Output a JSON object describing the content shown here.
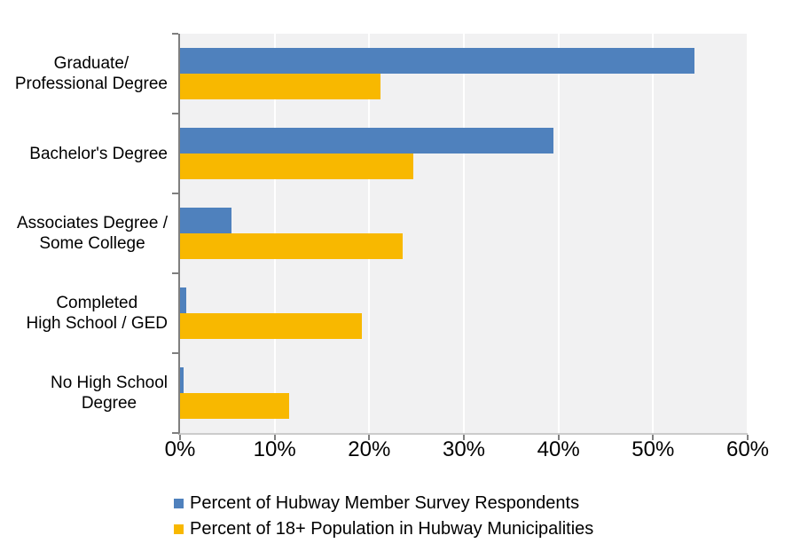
{
  "chart_data": {
    "type": "bar",
    "orientation": "horizontal",
    "title": "",
    "xlabel": "",
    "ylabel": "",
    "grid": true,
    "legend_position": "bottom",
    "categories": [
      [
        "Graduate/",
        "Professional Degree"
      ],
      [
        "Bachelor's Degree"
      ],
      [
        "Associates Degree /",
        "Some College"
      ],
      [
        "Completed",
        "High School / GED"
      ],
      [
        "No High School",
        "Degree"
      ]
    ],
    "series": [
      {
        "name": "Percent of Hubway Member Survey Respondents",
        "color": "#4f81bd",
        "values": [
          54.4,
          39.5,
          5.4,
          0.7,
          0.4
        ]
      },
      {
        "name": "Percent of 18+ Population in Hubway Municipalities",
        "color": "#f8b800",
        "values": [
          21.2,
          24.7,
          23.5,
          19.2,
          11.5
        ]
      }
    ],
    "x_axis": {
      "min": 0,
      "max": 60,
      "step": 10,
      "tick_labels": [
        "0%",
        "10%",
        "20%",
        "30%",
        "40%",
        "50%",
        "60%"
      ],
      "unit": "percent"
    },
    "colors": {
      "plot_background": "#f1f1f2",
      "gridline": "#ffffff",
      "axis_line": "#7f7f7f",
      "baseline": "#cbcbcb",
      "text": "#000000"
    }
  }
}
